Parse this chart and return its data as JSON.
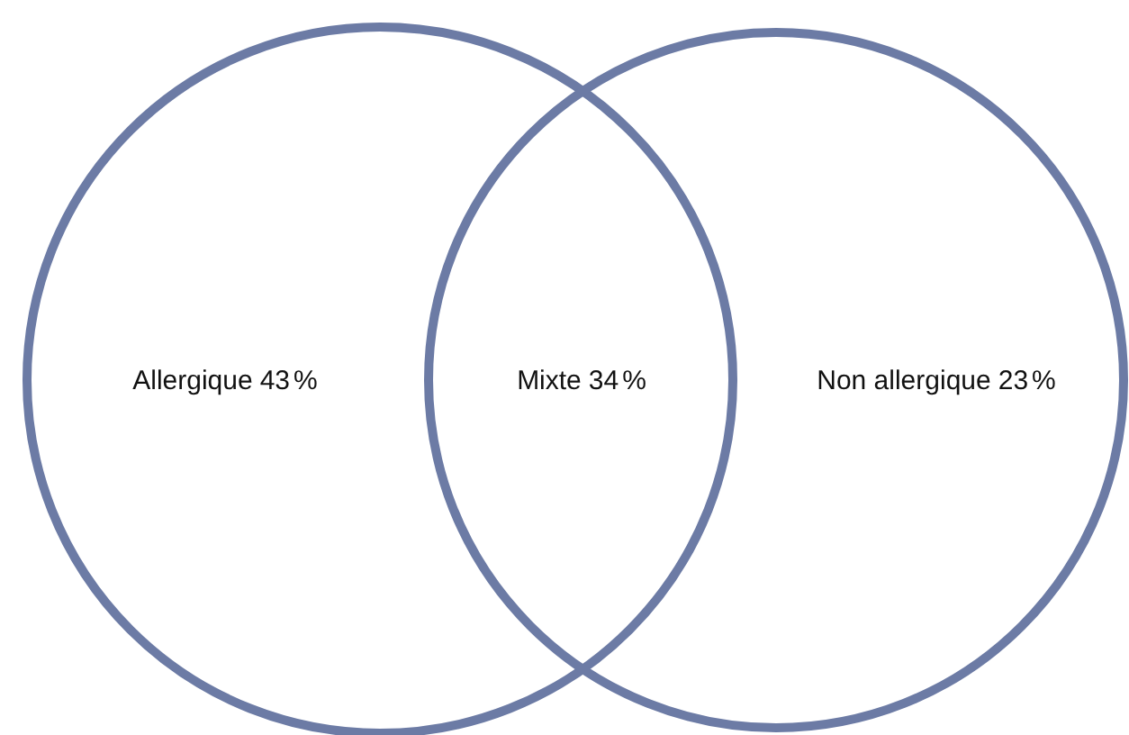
{
  "chart_data": {
    "type": "other",
    "categories": [
      "Allergique",
      "Mixte",
      "Non allergique"
    ],
    "values": [
      43,
      34,
      23
    ],
    "data_labels": true,
    "annotations": [
      "%"
    ]
  }
}
